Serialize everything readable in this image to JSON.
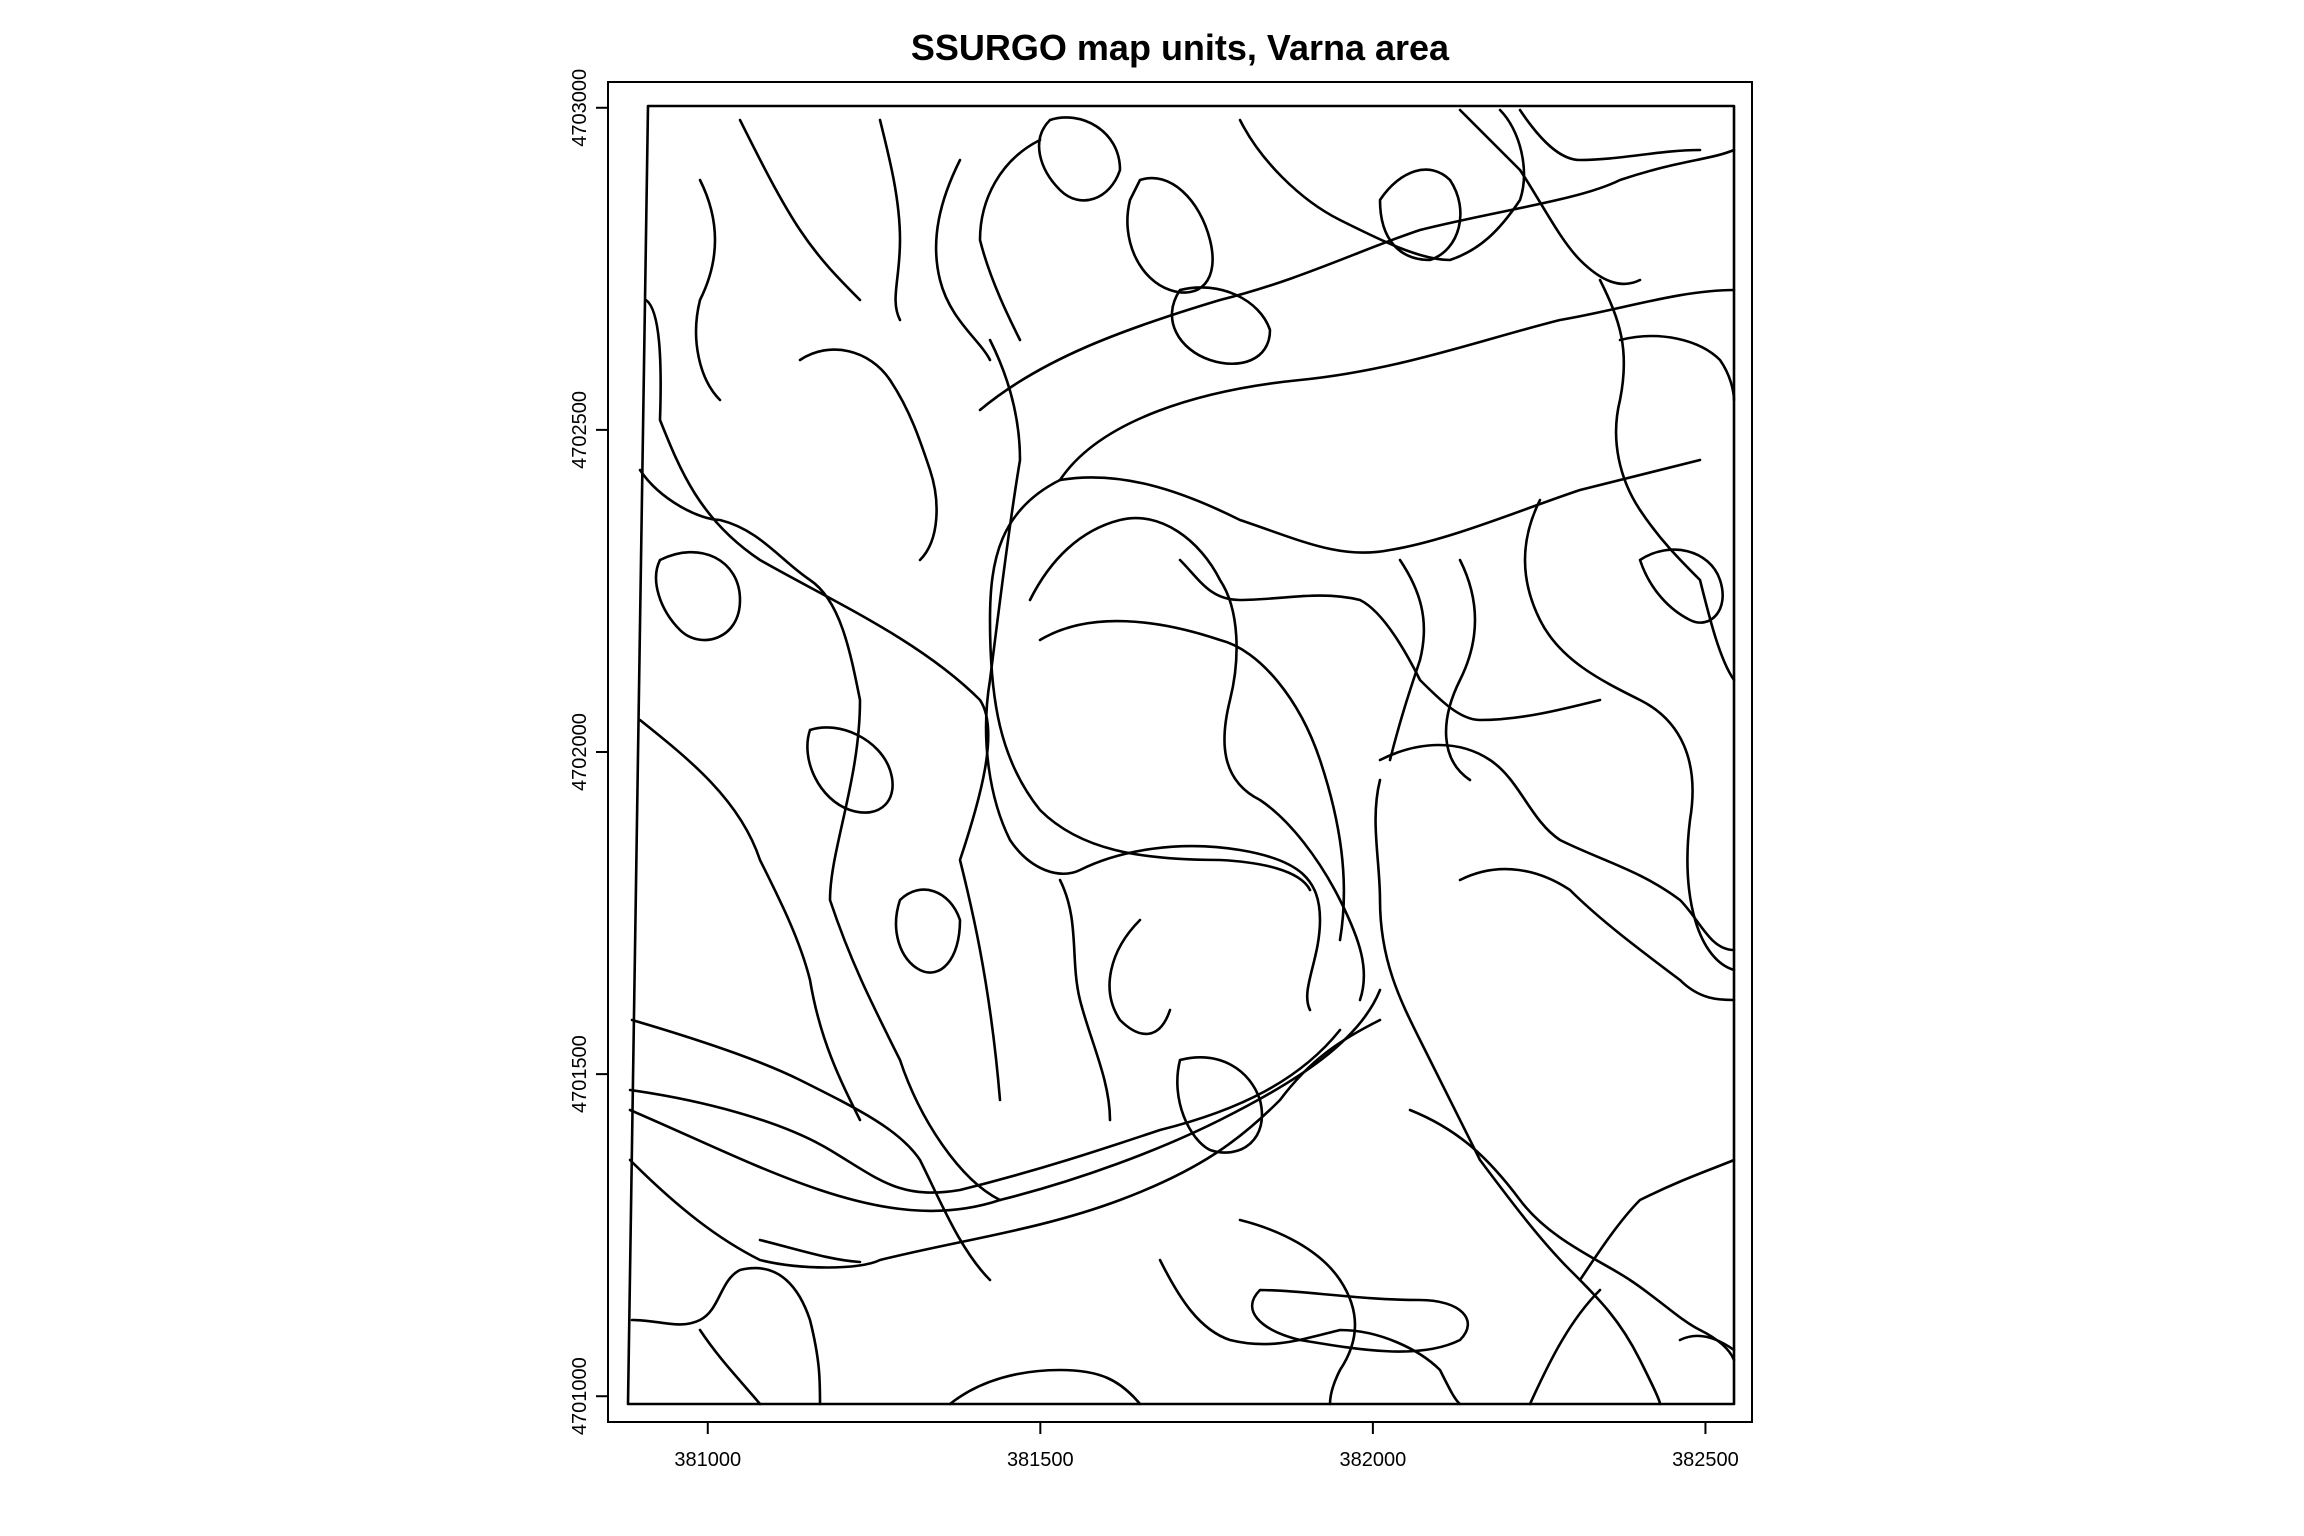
{
  "map": {
    "title": "SSURGO map units, Varna area",
    "x_axis": {
      "ticks": [
        {
          "value": 381000,
          "label": "381000"
        },
        {
          "value": 381500,
          "label": "381500"
        },
        {
          "value": 382000,
          "label": "382000"
        },
        {
          "value": 382500,
          "label": "382500"
        }
      ]
    },
    "y_axis": {
      "ticks": [
        {
          "value": 4701000,
          "label": "4701000"
        },
        {
          "value": 4701500,
          "label": "4701500"
        },
        {
          "value": 4702000,
          "label": "4702000"
        },
        {
          "value": 4702500,
          "label": "4702500"
        },
        {
          "value": 4703000,
          "label": "4703000"
        }
      ]
    },
    "extent": {
      "xmin": 380850,
      "xmax": 382570,
      "ymin": 4700960,
      "ymax": 4703040
    },
    "stroke_color": "#000000",
    "background_color": "#ffffff"
  }
}
